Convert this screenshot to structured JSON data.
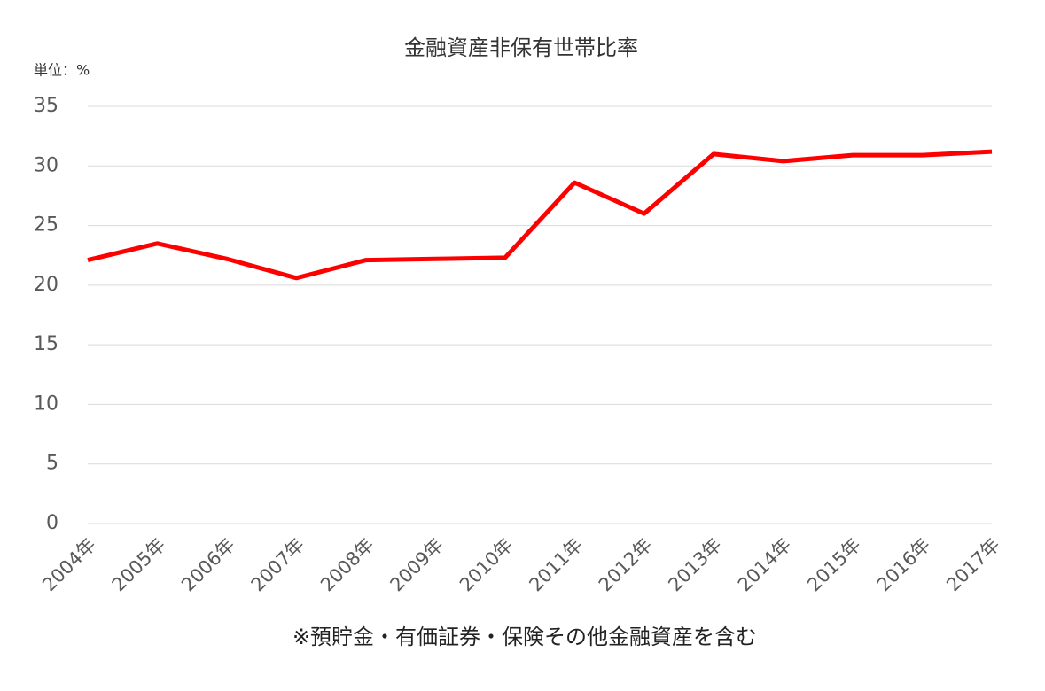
{
  "chart_data": {
    "type": "line",
    "title": "金融資産非保有世帯比率",
    "y_unit": "単位：%",
    "note": "※預貯金・有価証券・保険その他金融資産を含む",
    "categories": [
      "2004年",
      "2005年",
      "2006年",
      "2007年",
      "2008年",
      "2009年",
      "2010年",
      "2011年",
      "2012年",
      "2013年",
      "2014年",
      "2015年",
      "2016年",
      "2017年"
    ],
    "values": [
      22.1,
      23.5,
      22.2,
      20.6,
      22.1,
      22.2,
      22.3,
      28.6,
      26.0,
      31.0,
      30.4,
      30.9,
      30.9,
      31.2
    ],
    "color": "#ff0000",
    "ylim": [
      0,
      35
    ],
    "yticks": [
      0,
      5,
      10,
      15,
      20,
      25,
      30,
      35
    ],
    "grid": true
  }
}
